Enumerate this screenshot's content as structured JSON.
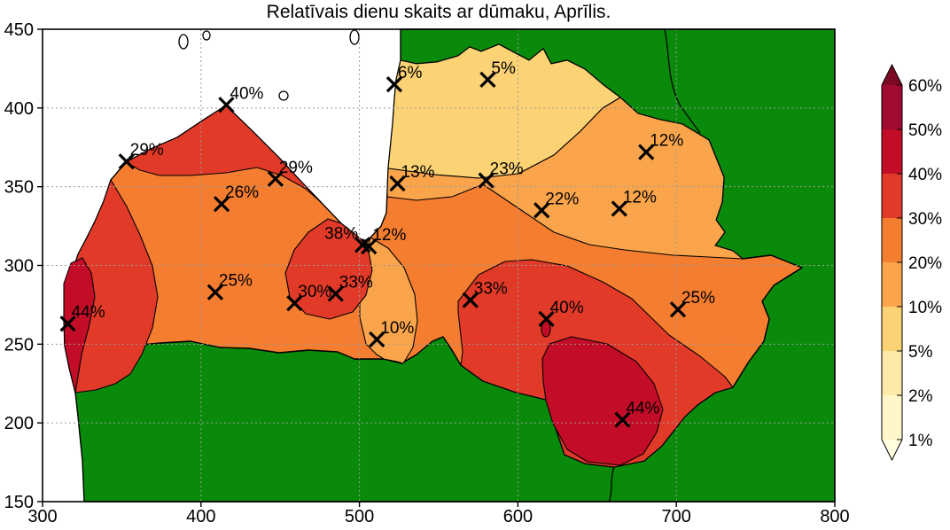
{
  "title": "Relatīvais dienu skaits ar dūmaku, Aprīlis.",
  "chart_data": {
    "type": "contour-map",
    "title": "Relatīvais dienu skaits ar dūmaku, Aprīlis.",
    "subject": "Relative number of days with haze in April, station map of Latvia",
    "xlim": [
      300,
      800
    ],
    "ylim": [
      150,
      450
    ],
    "x_ticks": [
      300,
      400,
      500,
      600,
      700,
      800
    ],
    "y_ticks": [
      150,
      200,
      250,
      300,
      350,
      400,
      450
    ],
    "grid": "dotted",
    "sea_color": "#ffffff",
    "outside_land_color": "#0a8a0a",
    "contour_levels_percent": [
      1,
      2,
      5,
      10,
      20,
      30,
      40,
      50,
      60
    ],
    "band_colors": {
      "lt1": "#ffffdf",
      "b1-2": "#fff6c9",
      "b2-5": "#fde9a8",
      "b5-10": "#fcd374",
      "b10-20": "#faa54b",
      "b20-30": "#f57d30",
      "b30-40": "#e23a28",
      "b40-50": "#c30d28",
      "b50-60": "#a10b2f",
      "gt60": "#7c0a25"
    },
    "colorbar": {
      "position": "right",
      "tick_labels": [
        "60%",
        "50%",
        "40%",
        "30%",
        "20%",
        "10%",
        "5%",
        "2%",
        "1%"
      ],
      "segments_top_to_bottom": [
        "b50-60",
        "b40-50",
        "b30-40",
        "b20-30",
        "b10-20",
        "b5-10",
        "b2-5",
        "b1-2"
      ],
      "arrow_top_band": "gt60",
      "arrow_bottom_band": "lt1"
    },
    "stations": [
      {
        "x": 316,
        "y": 263,
        "value": "44%"
      },
      {
        "x": 416,
        "y": 402,
        "value": "40%"
      },
      {
        "x": 353,
        "y": 366,
        "value": "29%"
      },
      {
        "x": 447,
        "y": 355,
        "value": "29%"
      },
      {
        "x": 413,
        "y": 339,
        "value": "26%"
      },
      {
        "x": 524,
        "y": 352,
        "value": "13%"
      },
      {
        "x": 580,
        "y": 354,
        "value": "23%"
      },
      {
        "x": 681,
        "y": 372,
        "value": "12%"
      },
      {
        "x": 615,
        "y": 335,
        "value": "22%"
      },
      {
        "x": 664,
        "y": 336,
        "value": "12%"
      },
      {
        "x": 502,
        "y": 313,
        "value": "38%",
        "label_side": "nw"
      },
      {
        "x": 506,
        "y": 312,
        "value": "12%"
      },
      {
        "x": 409,
        "y": 283,
        "value": "25%"
      },
      {
        "x": 459,
        "y": 276,
        "value": "30%"
      },
      {
        "x": 485,
        "y": 282,
        "value": "33%"
      },
      {
        "x": 511,
        "y": 253,
        "value": "10%"
      },
      {
        "x": 570,
        "y": 278,
        "value": "33%"
      },
      {
        "x": 618,
        "y": 266,
        "value": "40%"
      },
      {
        "x": 701,
        "y": 272,
        "value": "25%"
      },
      {
        "x": 666,
        "y": 202,
        "value": "44%"
      },
      {
        "x": 522,
        "y": 415,
        "value": "6%"
      },
      {
        "x": 581,
        "y": 418,
        "value": "5%"
      }
    ]
  }
}
